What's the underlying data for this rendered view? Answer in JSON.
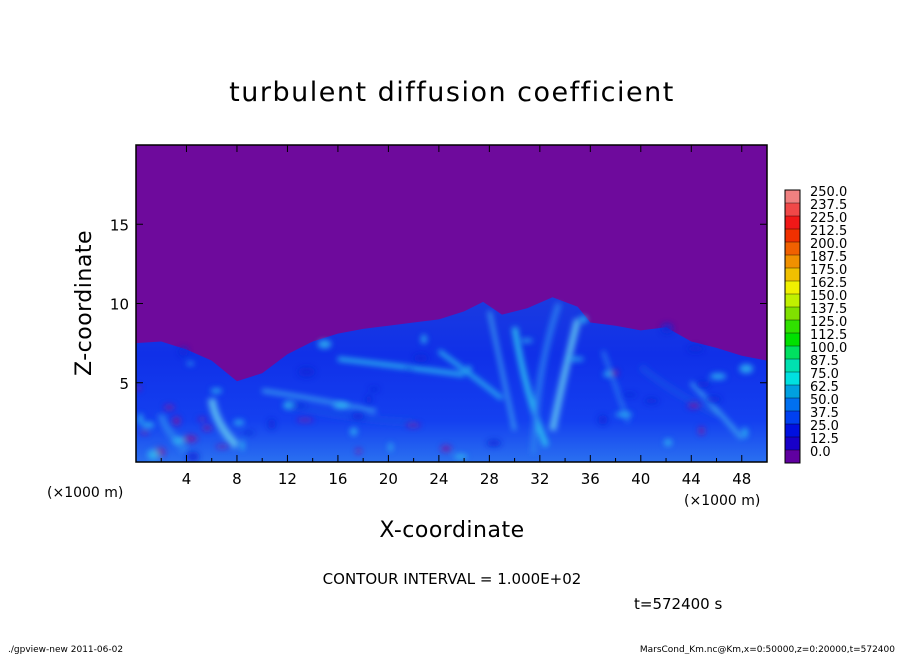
{
  "chart_data": {
    "type": "heatmap",
    "title": "turbulent diffusion coefficient",
    "xlabel": "X-coordinate",
    "ylabel": "Z-coordinate",
    "x_unit": "(×1000 m)",
    "y_unit": "(×1000 m)",
    "xlim": [
      0,
      50
    ],
    "ylim": [
      0,
      20
    ],
    "x_ticks": [
      "4",
      "8",
      "12",
      "16",
      "20",
      "24",
      "28",
      "32",
      "36",
      "40",
      "44",
      "48"
    ],
    "x_tick_values": [
      4,
      8,
      12,
      16,
      20,
      24,
      28,
      32,
      36,
      40,
      44,
      48
    ],
    "y_ticks": [
      "5",
      "10",
      "15"
    ],
    "y_tick_values": [
      5,
      10,
      15
    ],
    "colorbar": {
      "labels": [
        "250.0",
        "237.5",
        "225.0",
        "212.5",
        "200.0",
        "187.5",
        "175.0",
        "162.5",
        "150.0",
        "137.5",
        "125.0",
        "112.5",
        "100.0",
        "87.5",
        "75.0",
        "62.5",
        "50.0",
        "37.5",
        "25.0",
        "12.5",
        "0.0"
      ],
      "colors": [
        "#f08080",
        "#f04848",
        "#f01818",
        "#f03000",
        "#f06000",
        "#f09000",
        "#f0c000",
        "#f0f000",
        "#c0f000",
        "#80e000",
        "#30e000",
        "#00e000",
        "#00e060",
        "#00e0b0",
        "#00e0e0",
        "#00a0e0",
        "#0070f0",
        "#0040f0",
        "#0010e0",
        "#1800c8",
        "#6000a0"
      ]
    },
    "background_color": "#6e0a9c",
    "cloud_top_profile": [
      [
        0,
        7.5
      ],
      [
        2,
        7.6
      ],
      [
        4,
        7.1
      ],
      [
        6,
        6.4
      ],
      [
        8,
        5.1
      ],
      [
        10,
        5.6
      ],
      [
        12,
        6.8
      ],
      [
        14,
        7.6
      ],
      [
        16,
        8.1
      ],
      [
        18,
        8.4
      ],
      [
        20,
        8.6
      ],
      [
        22,
        8.8
      ],
      [
        24,
        9.0
      ],
      [
        26,
        9.5
      ],
      [
        27.5,
        10.1
      ],
      [
        29,
        9.3
      ],
      [
        31,
        9.7
      ],
      [
        33,
        10.4
      ],
      [
        35,
        9.8
      ],
      [
        36,
        8.8
      ],
      [
        38,
        8.6
      ],
      [
        40,
        8.3
      ],
      [
        42,
        8.5
      ],
      [
        44,
        7.6
      ],
      [
        46,
        7.2
      ],
      [
        48,
        6.7
      ],
      [
        50,
        6.4
      ]
    ],
    "annotations": {
      "contour_interval": "CONTOUR INTERVAL = 1.000E+02",
      "time": "t=572400 s"
    }
  },
  "footer": {
    "left": "./gpview-new  2011-06-02",
    "right": "MarsCond_Km.nc@Km,x=0:50000,z=0:20000,t=572400"
  }
}
